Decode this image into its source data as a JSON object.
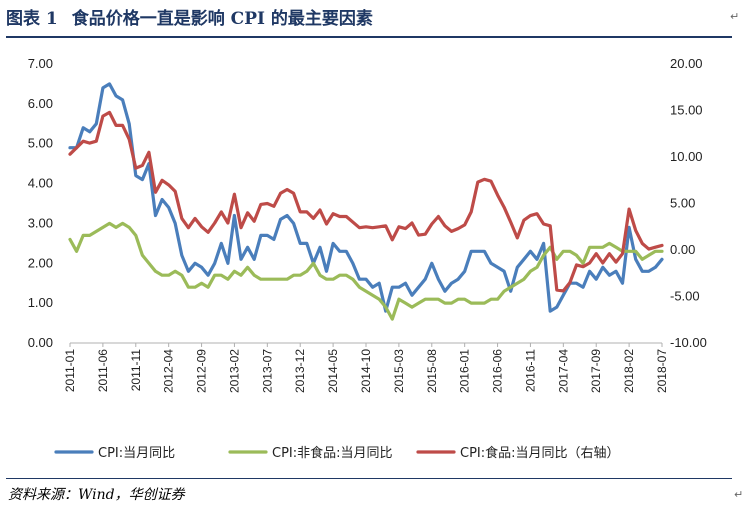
{
  "figure": {
    "label": "图表 1",
    "title": "食品价格一直是影响 CPI 的最主要因素",
    "source": "资料来源：Wind，华创证券",
    "para_mark": "↵"
  },
  "colors": {
    "cpi": "#4a7ebb",
    "nonfood": "#9bbb59",
    "food": "#be4b48",
    "rule": "#1f3864"
  },
  "chart_data": {
    "type": "line",
    "title": "食品价格一直是影响 CPI 的最主要因素",
    "x_tick_labels": [
      "2011-01",
      "2011-06",
      "2011-11",
      "2012-04",
      "2012-09",
      "2013-02",
      "2013-07",
      "2013-12",
      "2014-05",
      "2014-10",
      "2015-03",
      "2015-08",
      "2016-01",
      "2016-06",
      "2016-11",
      "2017-04",
      "2017-09",
      "2018-02",
      "2018-07"
    ],
    "y_left": {
      "ticks": [
        "0.00",
        "1.00",
        "2.00",
        "3.00",
        "4.00",
        "5.00",
        "6.00",
        "7.00"
      ],
      "lim": [
        0,
        7
      ]
    },
    "y_right": {
      "ticks": [
        "-10.00",
        "-5.00",
        "0.00",
        "5.00",
        "10.00",
        "15.00",
        "20.00"
      ],
      "lim": [
        -10,
        20
      ]
    },
    "grid": false,
    "legend_position": "bottom",
    "x_start": "2011-01",
    "x_end": "2018-07",
    "series": [
      {
        "name": "CPI:当月同比",
        "axis": "left",
        "color_key": "cpi",
        "values": [
          4.9,
          4.9,
          5.4,
          5.3,
          5.5,
          6.4,
          6.5,
          6.2,
          6.1,
          5.5,
          4.2,
          4.1,
          4.5,
          3.2,
          3.6,
          3.4,
          3.0,
          2.2,
          1.8,
          2.0,
          1.9,
          1.7,
          2.0,
          2.5,
          2.0,
          3.2,
          2.1,
          2.4,
          2.1,
          2.7,
          2.7,
          2.6,
          3.1,
          3.2,
          3.0,
          2.5,
          2.5,
          2.0,
          2.4,
          1.8,
          2.5,
          2.3,
          2.3,
          2.0,
          1.6,
          1.6,
          1.4,
          1.5,
          0.8,
          1.4,
          1.4,
          1.5,
          1.2,
          1.4,
          1.6,
          2.0,
          1.6,
          1.3,
          1.5,
          1.6,
          1.8,
          2.3,
          2.3,
          2.3,
          2.0,
          1.9,
          1.8,
          1.3,
          1.9,
          2.1,
          2.3,
          2.1,
          2.5,
          0.8,
          0.9,
          1.2,
          1.5,
          1.5,
          1.4,
          1.8,
          1.6,
          1.9,
          1.7,
          1.8,
          1.5,
          2.9,
          2.1,
          1.8,
          1.8,
          1.9,
          2.1
        ]
      },
      {
        "name": "CPI:非食品:当月同比",
        "axis": "left",
        "color_key": "nonfood",
        "values": [
          2.6,
          2.3,
          2.7,
          2.7,
          2.8,
          2.9,
          3.0,
          2.9,
          3.0,
          2.9,
          2.7,
          2.2,
          2.0,
          1.8,
          1.7,
          1.7,
          1.8,
          1.7,
          1.4,
          1.4,
          1.5,
          1.4,
          1.7,
          1.7,
          1.6,
          1.8,
          1.7,
          1.9,
          1.7,
          1.6,
          1.6,
          1.6,
          1.6,
          1.6,
          1.7,
          1.7,
          1.8,
          2.0,
          1.7,
          1.6,
          1.6,
          1.7,
          1.7,
          1.6,
          1.4,
          1.3,
          1.2,
          1.1,
          0.9,
          0.6,
          1.1,
          1.0,
          0.9,
          1.0,
          1.1,
          1.1,
          1.1,
          1.0,
          1.0,
          1.1,
          1.1,
          1.0,
          1.0,
          1.0,
          1.1,
          1.1,
          1.3,
          1.4,
          1.5,
          1.6,
          1.8,
          1.9,
          2.2,
          2.4,
          2.1,
          2.3,
          2.3,
          2.2,
          2.0,
          2.4,
          2.4,
          2.4,
          2.5,
          2.4,
          2.3,
          2.3,
          2.3,
          2.1,
          2.2,
          2.3,
          2.3
        ]
      },
      {
        "name": "CPI:食品:当月同比（右轴）",
        "axis": "right",
        "color_key": "food",
        "values": [
          10.3,
          11.0,
          11.7,
          11.5,
          11.7,
          14.4,
          14.8,
          13.4,
          13.4,
          11.9,
          8.8,
          9.1,
          10.5,
          6.2,
          7.5,
          7.0,
          6.3,
          3.4,
          2.4,
          3.4,
          2.5,
          1.9,
          2.9,
          4.1,
          2.9,
          6.0,
          2.4,
          4.0,
          3.1,
          4.9,
          5.0,
          4.7,
          6.1,
          6.5,
          6.1,
          4.1,
          4.1,
          3.4,
          4.3,
          2.8,
          3.9,
          3.6,
          3.6,
          3.0,
          2.4,
          2.5,
          2.4,
          2.5,
          2.6,
          1.1,
          2.5,
          2.3,
          2.9,
          1.6,
          1.7,
          2.8,
          3.6,
          2.6,
          2.0,
          2.3,
          2.7,
          4.1,
          7.3,
          7.6,
          7.4,
          5.9,
          4.6,
          3.0,
          1.3,
          3.2,
          3.7,
          3.9,
          2.8,
          2.6,
          -4.3,
          -4.4,
          -3.5,
          -1.6,
          -1.8,
          -1.4,
          -0.4,
          -1.4,
          -0.4,
          -1.3,
          -0.4,
          4.4,
          2.1,
          0.7,
          0.1,
          0.3,
          0.5
        ]
      }
    ]
  }
}
